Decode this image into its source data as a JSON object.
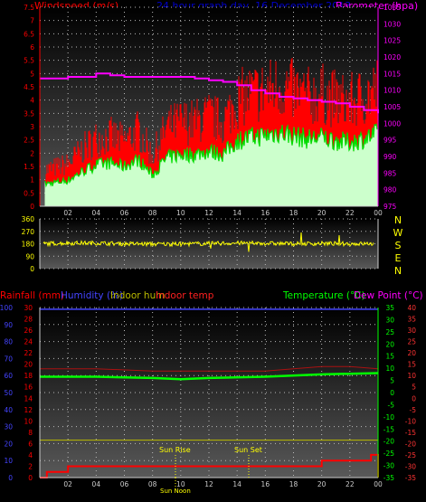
{
  "title": "24 hour graph day, 16 December 2013",
  "colors": {
    "wind": "#ff0000",
    "gust_fill": "#ff0000",
    "avg_fill": "#ccffcc",
    "avg_line": "#00dd00",
    "baro": "#ff00ff",
    "dir": "#ffff00",
    "rain": "#ff0000",
    "humidity": "#4444ff",
    "indoor_hum": "#bbbb00",
    "indoor_temp": "#ff2020",
    "temperature": "#00ff00",
    "dewpoint": "#ff00ff"
  },
  "x_ticks": [
    "02",
    "04",
    "06",
    "08",
    "10",
    "12",
    "14",
    "16",
    "18",
    "20",
    "22",
    "00"
  ],
  "top": {
    "left_label": "Windspeed (m/s)",
    "right_label": "Barometer (hpa)",
    "wind_ticks": [
      "0",
      "0.5",
      "1",
      "1.5",
      "2",
      "2.5",
      "3",
      "3.5",
      "4",
      "4.5",
      "5",
      "5.5",
      "6",
      "6.5",
      "7",
      "7.5"
    ],
    "baro_ticks": [
      "975",
      "980",
      "985",
      "990",
      "995",
      "1000",
      "1005",
      "1010",
      "1015",
      "1020",
      "1025",
      "1030",
      "1035"
    ]
  },
  "dir": {
    "left_ticks": [
      "0",
      "90",
      "180",
      "270",
      "360"
    ],
    "compass": [
      "N",
      "W",
      "S",
      "E",
      "N"
    ]
  },
  "bottom": {
    "labels": {
      "rain": "Rainfall (mm)",
      "humidity": "Humidity (%)",
      "indoor_hum": "Indoor hum",
      "indoor_temp": "Indoor temp",
      "temperature": "Temperature (°C)",
      "dewpoint": "Dew Point (°C)"
    },
    "rain_ticks": [
      "0",
      "2",
      "4",
      "6",
      "8",
      "10",
      "12",
      "14",
      "16",
      "18",
      "20",
      "22",
      "24",
      "26",
      "28",
      "30"
    ],
    "hum_ticks": [
      "0",
      "10",
      "20",
      "30",
      "40",
      "50",
      "60",
      "70",
      "80",
      "90",
      "100"
    ],
    "temp_ticks": [
      "-35",
      "-30",
      "-25",
      "-20",
      "-15",
      "-10",
      "-5",
      "0",
      "5",
      "10",
      "15",
      "20",
      "25",
      "30",
      "35"
    ],
    "dew_ticks": [
      "-35",
      "-30",
      "-25",
      "-20",
      "-15",
      "-10",
      "-5",
      "0",
      "5",
      "10",
      "15",
      "20",
      "25",
      "30",
      "35",
      "40"
    ],
    "sun_rise": "Sun Rise",
    "sun_set": "Sun Set",
    "sun_noon": "Sun Noon"
  },
  "chart_data": {
    "type": "line",
    "title": "24 hour graph day, 16 December 2013",
    "x_range": [
      "00:00",
      "24:00"
    ],
    "series": [
      {
        "name": "Windspeed (m/s)",
        "ylim": [
          0,
          7.5
        ],
        "x": [
          0.5,
          2,
          3,
          4,
          5,
          6,
          7,
          8,
          9,
          10,
          11,
          12,
          13,
          14,
          15,
          16,
          17,
          18,
          19,
          20,
          21,
          22,
          23,
          24
        ],
        "values": [
          1.3,
          1.5,
          2.0,
          2.4,
          2.5,
          2.3,
          2.7,
          1.8,
          2.8,
          3.0,
          3.0,
          3.2,
          3.0,
          3.8,
          4.0,
          4.1,
          4.3,
          4.1,
          3.9,
          4.0,
          3.8,
          3.7,
          3.9,
          4.2
        ]
      },
      {
        "name": "Barometer (hpa)",
        "ylim": [
          975,
          1035
        ],
        "x": [
          0,
          1,
          2,
          3,
          4,
          5,
          6,
          7,
          8,
          9,
          10,
          11,
          12,
          13,
          14,
          15,
          16,
          17,
          18,
          19,
          20,
          21,
          22,
          23,
          24
        ],
        "values": [
          1013.5,
          1013.5,
          1014,
          1014,
          1015,
          1014.5,
          1014,
          1014,
          1014,
          1014,
          1014,
          1013.5,
          1013,
          1012.5,
          1011.5,
          1010,
          1009,
          1008,
          1007.5,
          1007,
          1006.5,
          1006,
          1005,
          1004,
          1003
        ]
      },
      {
        "name": "Wind direction",
        "ylim": [
          0,
          360
        ],
        "x": [
          0,
          2,
          4,
          6,
          8,
          10,
          12,
          14,
          16,
          18,
          20,
          22,
          24
        ],
        "values": [
          180,
          185,
          185,
          180,
          178,
          178,
          182,
          185,
          183,
          180,
          182,
          180,
          180
        ]
      },
      {
        "name": "Rainfall (mm)",
        "ylim": [
          0,
          30
        ],
        "x": [
          0,
          0.5,
          1,
          2,
          4,
          8,
          12,
          16,
          19,
          20,
          22,
          23,
          23.5,
          24
        ],
        "values": [
          0,
          1,
          1,
          2,
          2,
          2,
          2,
          2,
          2,
          3,
          3,
          3,
          4,
          0
        ]
      },
      {
        "name": "Humidity (%)",
        "ylim": [
          0,
          100
        ],
        "x": [
          0,
          24
        ],
        "values": [
          99,
          99
        ]
      },
      {
        "name": "Indoor hum",
        "ylim": [
          0,
          100
        ],
        "x": [
          0,
          4,
          8,
          12,
          16,
          20,
          24
        ],
        "values": [
          22,
          22,
          22,
          22,
          22,
          22,
          22
        ]
      },
      {
        "name": "Indoor temp",
        "ylim": [
          -35,
          40
        ],
        "x": [
          0,
          4,
          8,
          12,
          16,
          18,
          20,
          22,
          24
        ],
        "values": [
          13,
          13,
          12,
          12,
          12,
          13,
          14,
          14,
          13
        ]
      },
      {
        "name": "Temperature (°C)",
        "ylim": [
          -35,
          35
        ],
        "x": [
          0,
          4,
          8,
          10,
          12,
          16,
          20,
          24
        ],
        "values": [
          6.5,
          6.5,
          6,
          5.5,
          6,
          6.5,
          7.5,
          8
        ]
      }
    ]
  }
}
